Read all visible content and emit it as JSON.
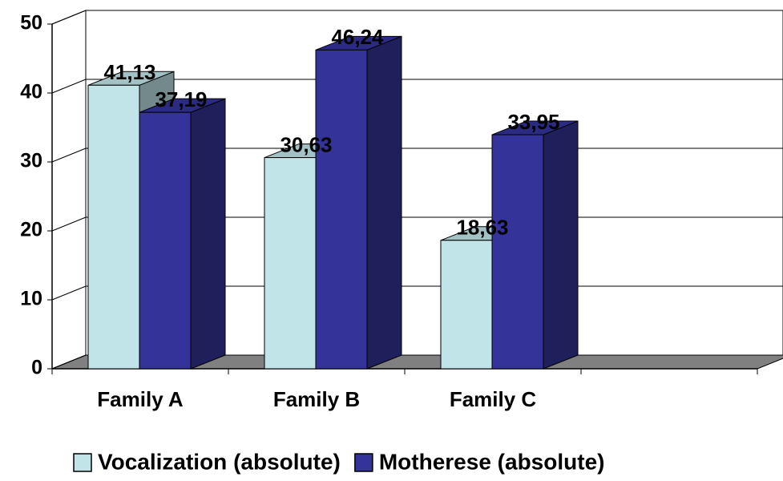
{
  "chart_data": {
    "type": "bar3d",
    "categories": [
      "Family A",
      "Family B",
      "Family C",
      null
    ],
    "series": [
      {
        "name": "Vocalization (absolute)",
        "color": "#c0e4e8",
        "values": [
          41.13,
          30.63,
          18.63,
          null
        ],
        "value_labels": [
          "41,13",
          "30,63",
          "18,63",
          null
        ]
      },
      {
        "name": "Motherese (absolute)",
        "color": "#333399",
        "values": [
          37.19,
          46.24,
          33.95,
          null
        ],
        "value_labels": [
          "37,19",
          "46,24",
          "33,95",
          null
        ]
      }
    ],
    "ylim": [
      0,
      50
    ],
    "yticks": [
      0,
      10,
      20,
      30,
      40,
      50
    ],
    "grid": true,
    "legend": "bottom"
  }
}
